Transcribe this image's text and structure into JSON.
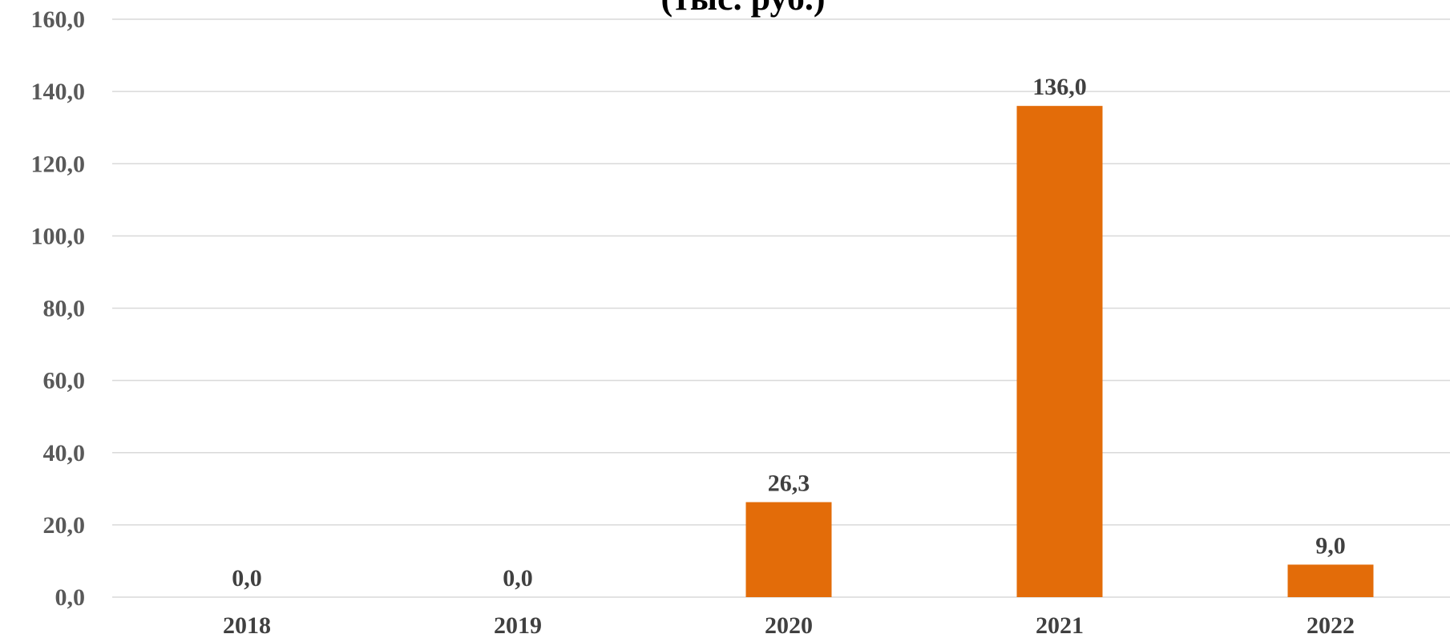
{
  "chart_data": {
    "type": "bar",
    "title": "(тыс. руб.)",
    "categories": [
      "2018",
      "2019",
      "2020",
      "2021",
      "2022"
    ],
    "values": [
      0.0,
      0.0,
      26.3,
      136.0,
      9.0
    ],
    "data_labels": [
      "0,0",
      "0,0",
      "26,3",
      "136,0",
      "9,0"
    ],
    "ylim": [
      0,
      160
    ],
    "yticks": [
      0,
      20,
      40,
      60,
      80,
      100,
      120,
      140,
      160
    ],
    "ytick_labels": [
      "0,0",
      "20,0",
      "40,0",
      "60,0",
      "80,0",
      "100,0",
      "120,0",
      "140,0",
      "160,0"
    ],
    "xlabel": "",
    "ylabel": "",
    "grid": true,
    "legend": "none",
    "bar_color": "#e36c09"
  }
}
